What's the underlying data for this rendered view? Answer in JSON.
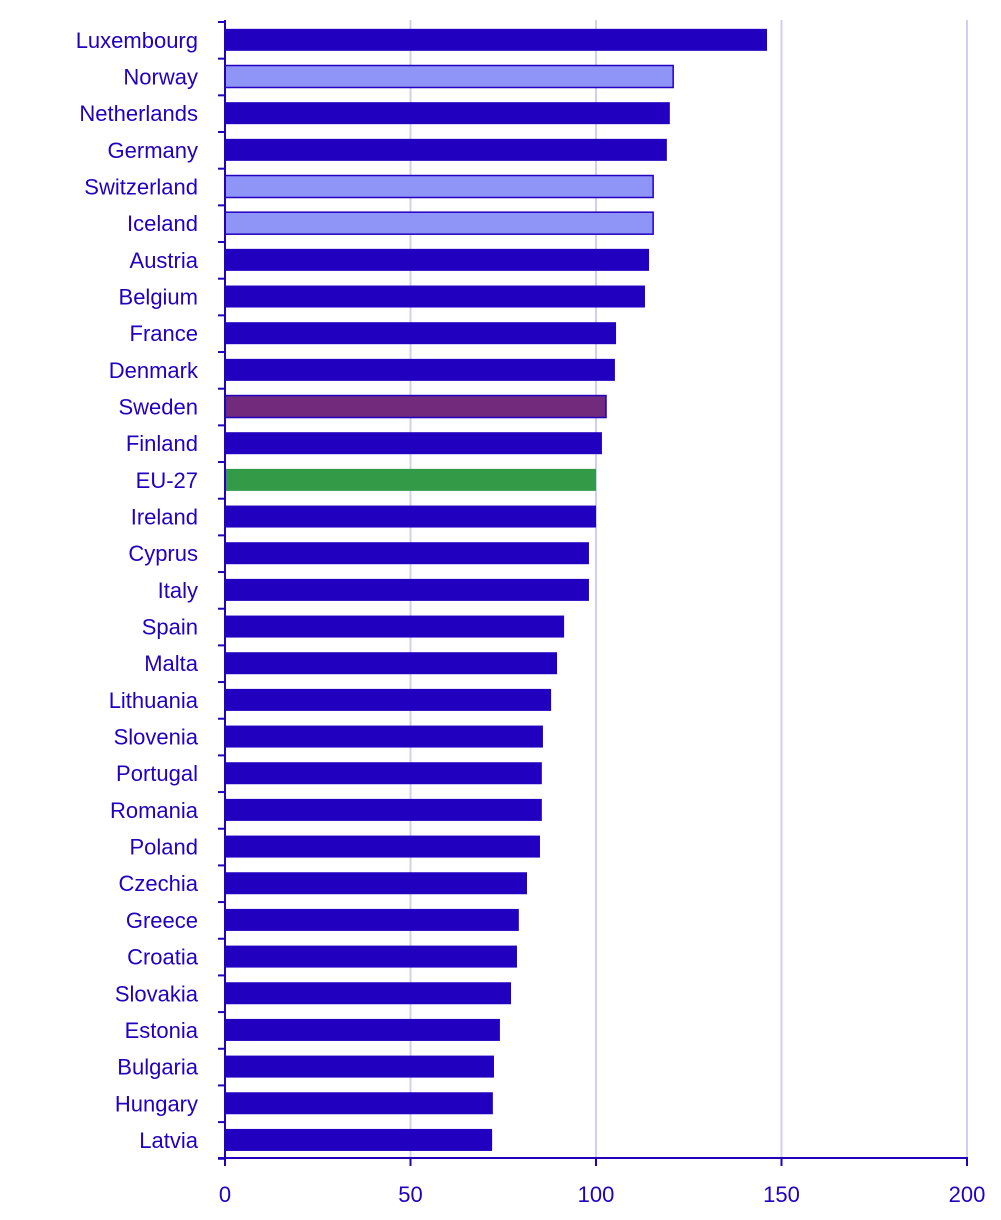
{
  "chart_data": {
    "type": "bar",
    "orientation": "horizontal",
    "categories": [
      "Luxembourg",
      "Norway",
      "Netherlands",
      "Germany",
      "Switzerland",
      "Iceland",
      "Austria",
      "Belgium",
      "France",
      "Denmark",
      "Sweden",
      "Finland",
      "EU-27",
      "Ireland",
      "Cyprus",
      "Italy",
      "Spain",
      "Malta",
      "Lithuania",
      "Slovenia",
      "Portugal",
      "Romania",
      "Poland",
      "Czechia",
      "Greece",
      "Croatia",
      "Slovakia",
      "Estonia",
      "Bulgaria",
      "Hungary",
      "Latvia"
    ],
    "values": [
      146.1,
      120.8,
      119.9,
      119.1,
      115.4,
      115.4,
      114.3,
      113.2,
      105.4,
      105.1,
      102.7,
      101.6,
      100,
      100,
      98.1,
      98.1,
      91.4,
      89.5,
      87.9,
      85.7,
      85.4,
      85.4,
      84.9,
      81.4,
      79.2,
      78.7,
      77.1,
      74.1,
      72.5,
      72.2,
      72.0
    ],
    "bar_groups": [
      "eu",
      "non-eu",
      "eu",
      "eu",
      "non-eu",
      "non-eu",
      "eu",
      "eu",
      "eu",
      "eu",
      "sweden",
      "eu",
      "eu-27",
      "eu",
      "eu",
      "eu",
      "eu",
      "eu",
      "eu",
      "eu",
      "eu",
      "eu",
      "eu",
      "eu",
      "eu",
      "eu",
      "eu",
      "eu",
      "eu",
      "eu",
      "eu"
    ],
    "colors": {
      "eu": "#2100c0",
      "non-eu": "#8f94f7",
      "sweden": "#722a7c",
      "eu-27": "#339b48",
      "axis": "#2100c0",
      "grid": "#d0d0ec"
    },
    "xlim": [
      0,
      200
    ],
    "xticks": [
      "0",
      "50",
      "100",
      "150",
      "200"
    ],
    "grid": true,
    "title": "",
    "xlabel": "",
    "ylabel": ""
  }
}
